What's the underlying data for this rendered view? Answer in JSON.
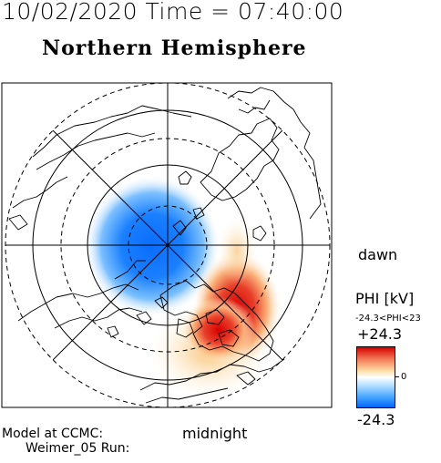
{
  "header": {
    "datetime": "10/02/2020 Time = 07:40:00",
    "hemisphere": "Northern Hemisphere"
  },
  "map": {
    "projection": "polar-stereographic",
    "pole": "north",
    "labels": {
      "dawn": "dawn",
      "midnight": "midnight"
    },
    "colors": {
      "positive": "#d40000",
      "negative": "#0066ff",
      "neutral": "#ffffff"
    }
  },
  "colorbar": {
    "title": "PHI [kV]",
    "range_text": "-24.3<PHI<23",
    "max_label": "+24.3",
    "zero_label": "0",
    "min_label": "-24.3"
  },
  "footer": {
    "line1": "Model at CCMC:",
    "line2": "Weimer_05 Run:"
  }
}
